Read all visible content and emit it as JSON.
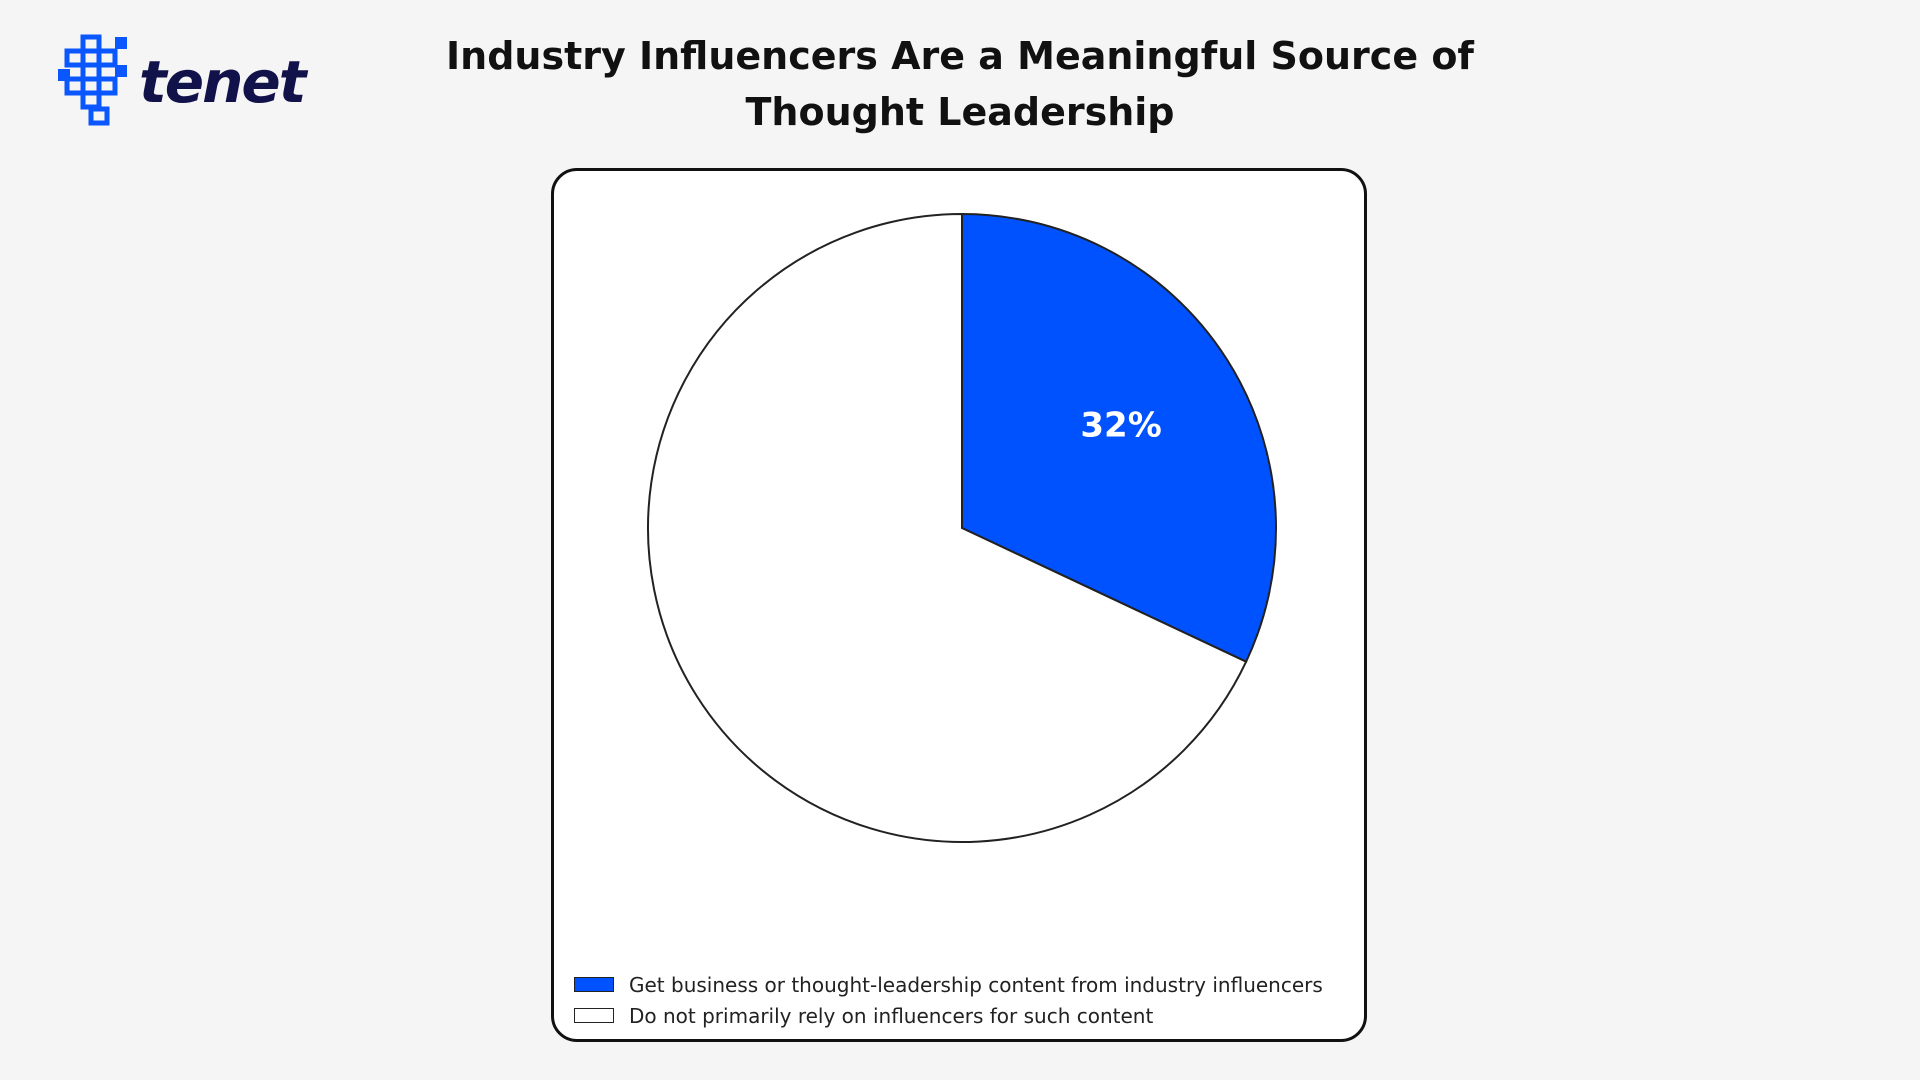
{
  "brand": {
    "name": "tenet",
    "logo_icon": "tenet-logo-icon",
    "logo_color": "#0a57ff"
  },
  "chart_data": {
    "type": "pie",
    "title": "Industry Influencers Are a Meaningful Source of Thought Leadership",
    "slices": [
      {
        "label": "Get business or thought-leadership content from industry influencers",
        "value": 32,
        "display": "32%",
        "color": "#0052ff"
      },
      {
        "label": "Do not primarily rely on influencers for such content",
        "value": 68,
        "display": "",
        "color": "#ffffff"
      }
    ],
    "start": "12 o'clock",
    "direction": "clockwise",
    "legend_placement": "bottom-left"
  }
}
